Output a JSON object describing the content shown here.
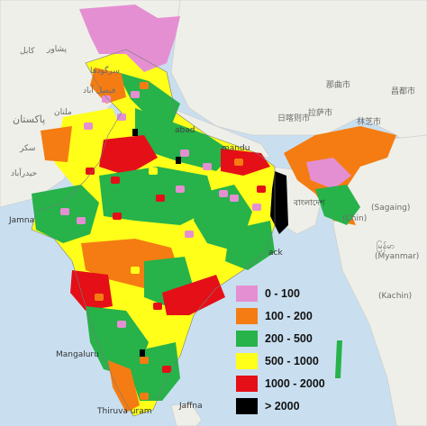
{
  "map": {
    "palette": {
      "pink": "#e58fd3",
      "orange": "#f57c12",
      "green": "#27b24a",
      "yellow": "#ffff1a",
      "red": "#e50f17",
      "black": "#000000",
      "land": "#efefe9",
      "water": "#c9dff0"
    },
    "legend": [
      {
        "label": "0 - 100",
        "color": "#e58fd3"
      },
      {
        "label": "100 - 200",
        "color": "#f57c12"
      },
      {
        "label": "200 - 500",
        "color": "#27b24a"
      },
      {
        "label": "500 - 1000",
        "color": "#ffff1a"
      },
      {
        "label": "1000 - 2000",
        "color": "#e50f17"
      },
      {
        "label": "> 2000",
        "color": "#000000"
      }
    ],
    "basemap_labels": {
      "peshawar": "پشاور",
      "kabul": "کابل",
      "sargodha": "سرگودھا",
      "faisalabad": "فیصل آباد",
      "multan": "ملتان",
      "pakistan": "پاکستان",
      "sukkur": "سکر",
      "hyderabad": "حیدرآباد",
      "jamnagar": "Jamna",
      "mangaluru": "Mangaluru",
      "thiruvananthapuram": "Thiruva  uram",
      "jaffna": "Jaffna",
      "kathmandu": "mandu",
      "nepal_city_left": "abad",
      "tibet_rikaze": "日喀则市",
      "tibet_lhasa": "拉萨市",
      "tibet_naqu": "那曲市",
      "tibet_changdu": "昌都市",
      "tibet_linzhi": "林芝市",
      "bangladesh": "বাংলাদেশ",
      "myanmar": "မြန်မာ",
      "myanmar_sub": "(Myanmar)",
      "kachin": "(Kachin)",
      "sagaing": "(Sagaing)",
      "chin_label": "(Chin)",
      "kolkata_area": "ack"
    }
  }
}
